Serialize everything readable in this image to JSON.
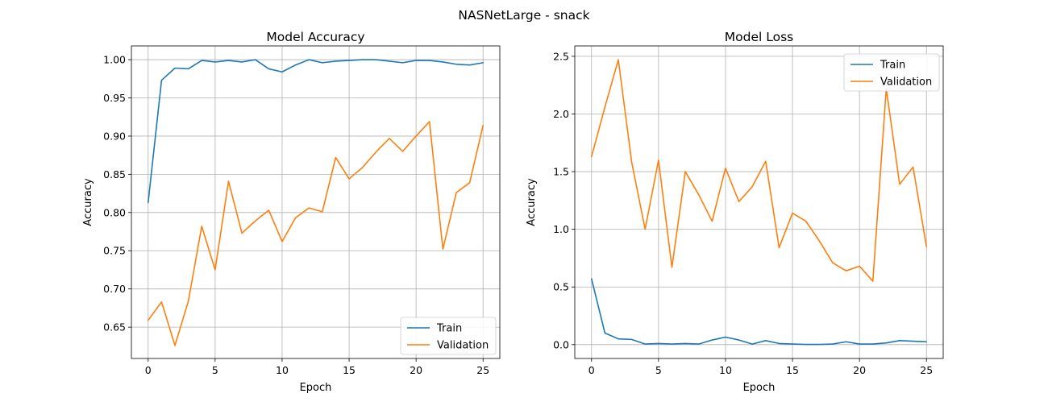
{
  "figure": {
    "title": "NASNetLarge - snack"
  },
  "colors": {
    "train": "#1f77b4",
    "validation": "#ff7f0e"
  },
  "chart_data": [
    {
      "type": "line",
      "title": "Model Accuracy",
      "xlabel": "Epoch",
      "ylabel": "Accuracy",
      "xlim": [
        -1.25,
        26.25
      ],
      "ylim": [
        0.609,
        1.018
      ],
      "xticks": [
        0,
        5,
        10,
        15,
        20,
        25
      ],
      "yticks": [
        0.65,
        0.7,
        0.75,
        0.8,
        0.85,
        0.9,
        0.95,
        1.0
      ],
      "ytick_labels": [
        "0.65",
        "0.70",
        "0.75",
        "0.80",
        "0.85",
        "0.90",
        "0.95",
        "1.00"
      ],
      "grid": true,
      "legend": "lower-right",
      "x": [
        0,
        1,
        2,
        3,
        4,
        5,
        6,
        7,
        8,
        9,
        10,
        11,
        12,
        13,
        14,
        15,
        16,
        17,
        18,
        19,
        20,
        21,
        22,
        23,
        24,
        25
      ],
      "series": [
        {
          "name": "Train",
          "color": "#1f77b4",
          "values": [
            0.813,
            0.973,
            0.989,
            0.988,
            0.999,
            0.997,
            0.999,
            0.997,
            1.0,
            0.988,
            0.984,
            0.993,
            1.0,
            0.996,
            0.998,
            0.999,
            1.0,
            1.0,
            0.998,
            0.996,
            0.999,
            0.999,
            0.997,
            0.994,
            0.993,
            0.996
          ]
        },
        {
          "name": "Validation",
          "color": "#ff7f0e",
          "values": [
            0.659,
            0.683,
            0.626,
            0.684,
            0.782,
            0.725,
            0.841,
            0.773,
            0.789,
            0.803,
            0.762,
            0.793,
            0.806,
            0.801,
            0.872,
            0.844,
            0.859,
            0.879,
            0.897,
            0.88,
            0.9,
            0.919,
            0.752,
            0.826,
            0.839,
            0.914
          ]
        }
      ]
    },
    {
      "type": "line",
      "title": "Model Loss",
      "xlabel": "Epoch",
      "ylabel": "Accuracy",
      "xlim": [
        -1.25,
        26.25
      ],
      "ylim": [
        -0.12,
        2.59
      ],
      "xticks": [
        0,
        5,
        10,
        15,
        20,
        25
      ],
      "yticks": [
        0.0,
        0.5,
        1.0,
        1.5,
        2.0,
        2.5
      ],
      "ytick_labels": [
        "0.0",
        "0.5",
        "1.0",
        "1.5",
        "2.0",
        "2.5"
      ],
      "grid": true,
      "legend": "upper-right",
      "x": [
        0,
        1,
        2,
        3,
        4,
        5,
        6,
        7,
        8,
        9,
        10,
        11,
        12,
        13,
        14,
        15,
        16,
        17,
        18,
        19,
        20,
        21,
        22,
        23,
        24,
        25
      ],
      "series": [
        {
          "name": "Train",
          "color": "#1f77b4",
          "values": [
            0.57,
            0.1,
            0.05,
            0.045,
            0.005,
            0.01,
            0.005,
            0.01,
            0.005,
            0.04,
            0.065,
            0.04,
            0.005,
            0.035,
            0.01,
            0.005,
            0.002,
            0.002,
            0.005,
            0.025,
            0.005,
            0.005,
            0.015,
            0.035,
            0.03,
            0.025
          ]
        },
        {
          "name": "Validation",
          "color": "#ff7f0e",
          "values": [
            1.63,
            2.06,
            2.47,
            1.58,
            1.0,
            1.6,
            0.67,
            1.5,
            1.3,
            1.07,
            1.53,
            1.24,
            1.37,
            1.59,
            0.84,
            1.14,
            1.07,
            0.9,
            0.71,
            0.64,
            0.68,
            0.55,
            2.22,
            1.39,
            1.54,
            0.85
          ]
        }
      ]
    }
  ]
}
